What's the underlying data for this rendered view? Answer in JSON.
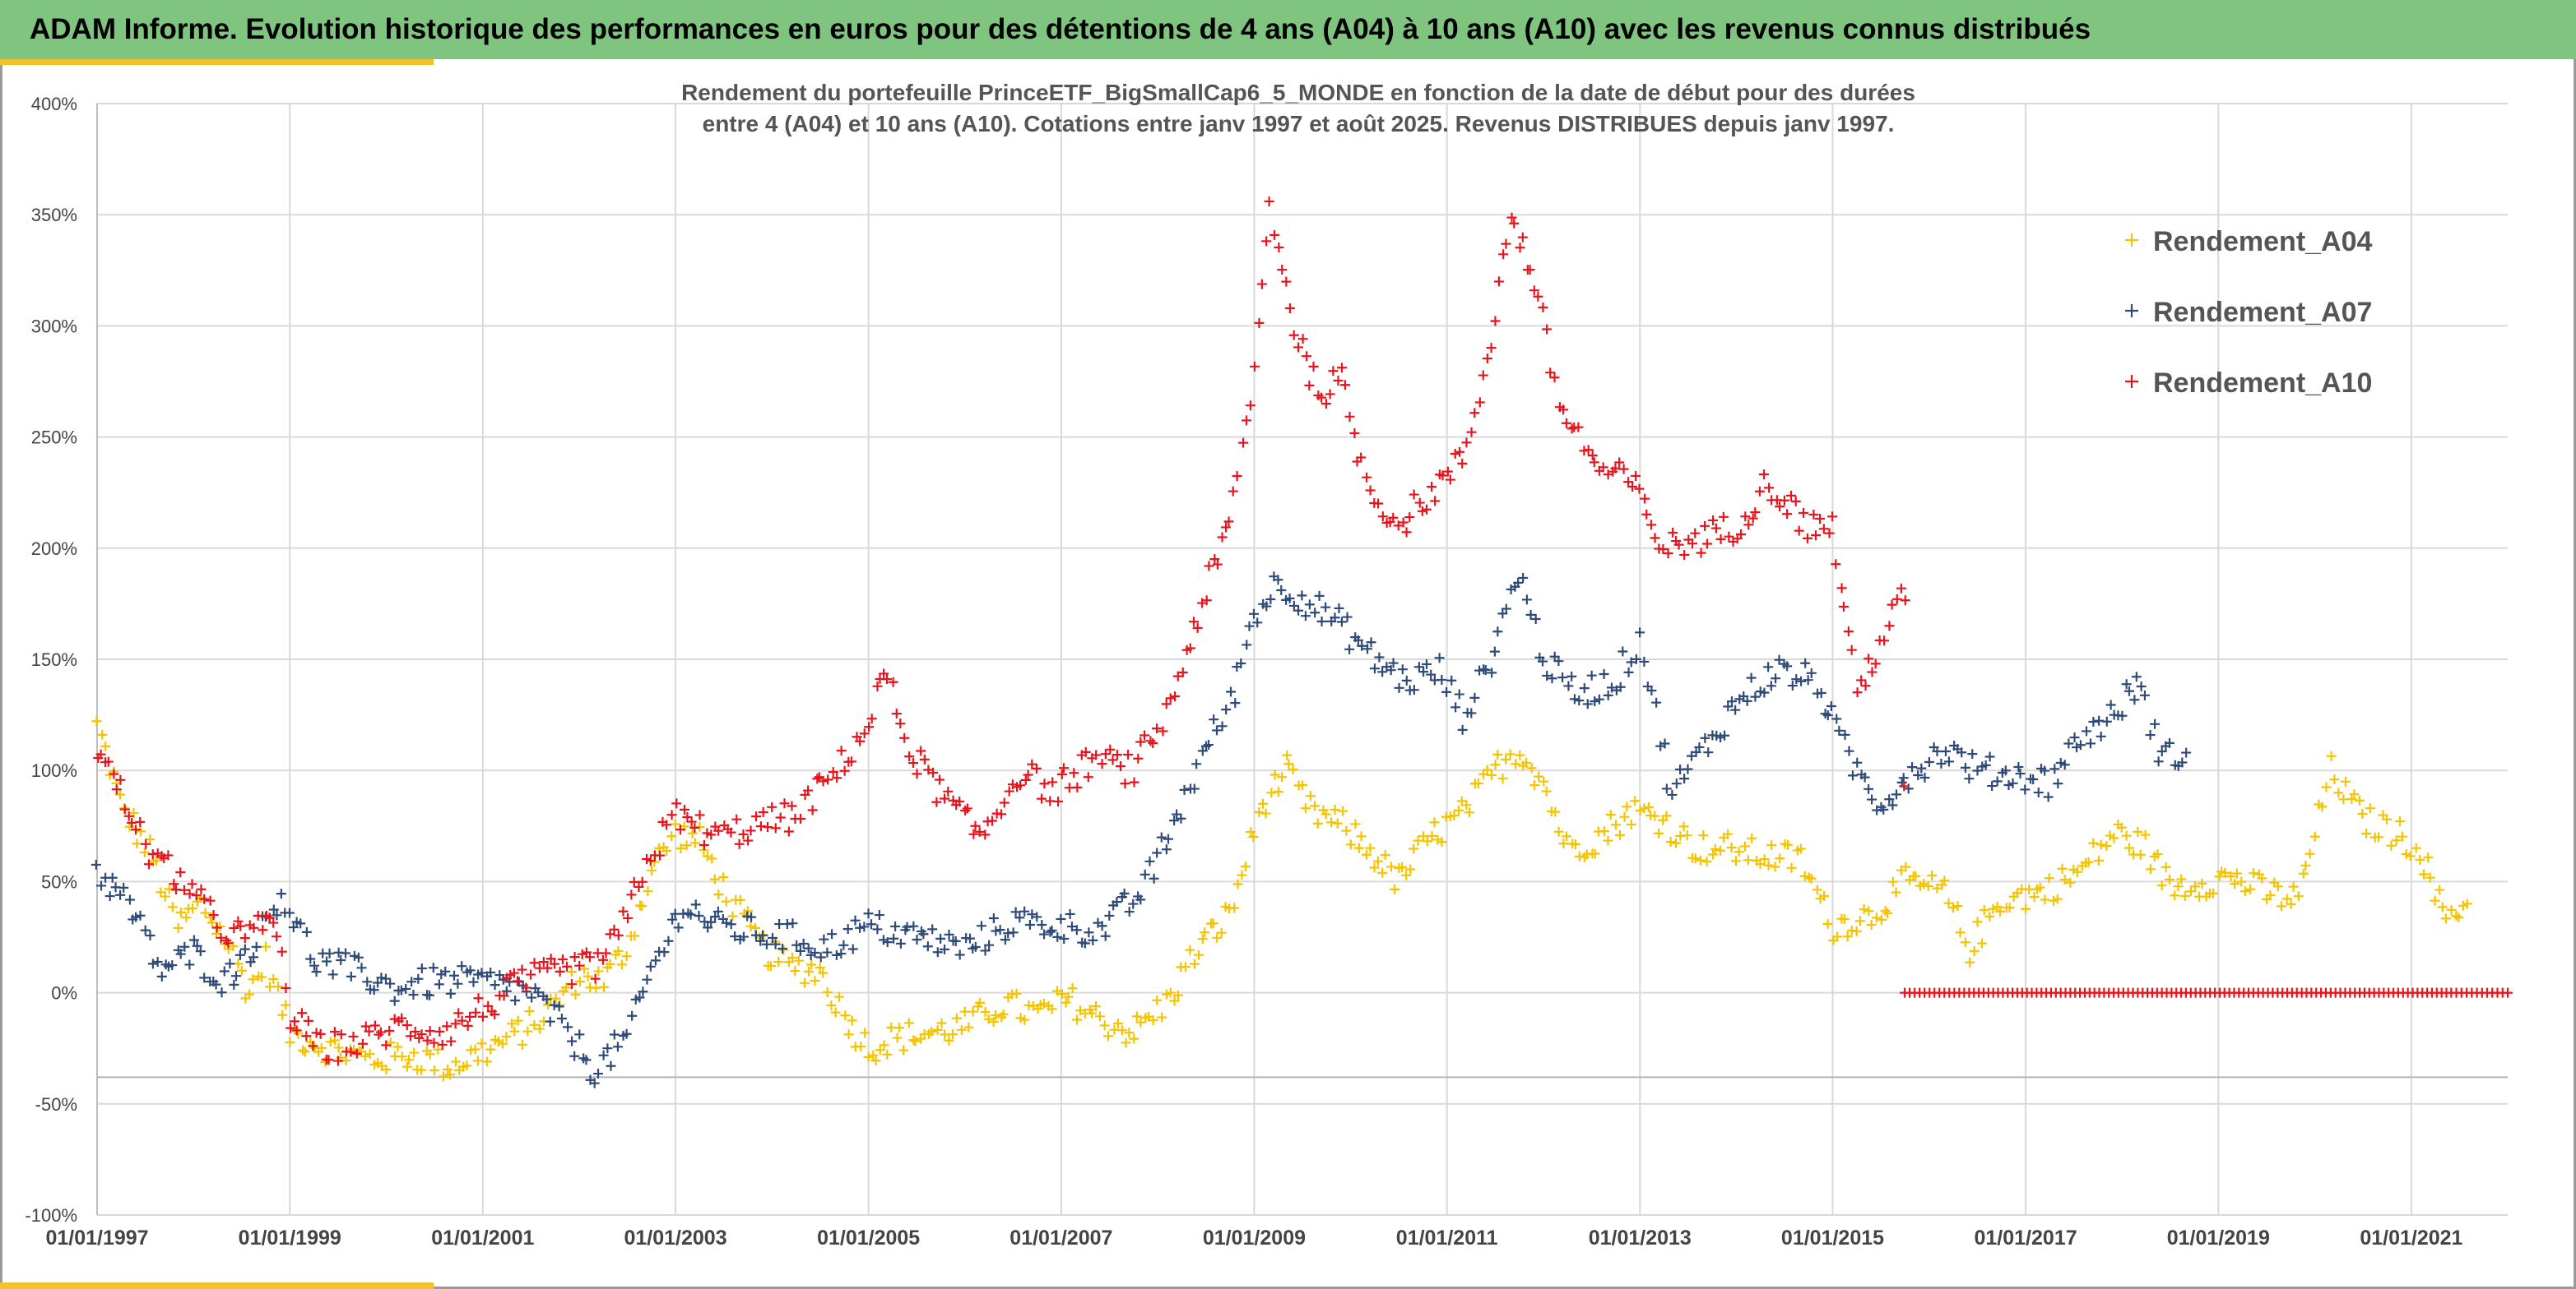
{
  "banner": {
    "title": "ADAM Informe. Evolution historique des performances en euros pour des détentions de 4 ans (A04) à 10 ans (A10) avec les revenus connus distribués"
  },
  "colors": {
    "banner_bg": "#7fc47f",
    "accent": "#f2c12e",
    "A04": "#f5c400",
    "A07": "#2e4a78",
    "A10": "#e8141c"
  },
  "chart_data": {
    "type": "scatter",
    "title_line1": "Rendement du portefeuille PrinceETF_BigSmallCap6_5_MONDE  en fonction de la date de début pour des durées",
    "title_line2": "entre 4 (A04) et 10 ans (A10). Cotations entre janv 1997 et août 2025. Revenus DISTRIBUES depuis janv 1997.",
    "xlabel": "",
    "ylabel": "",
    "x_range": [
      "1997-01-01",
      "2022-01-01"
    ],
    "ylim": [
      -100,
      400
    ],
    "y_ticks": [
      {
        "value": 400,
        "label": "400%"
      },
      {
        "value": 350,
        "label": "350%"
      },
      {
        "value": 300,
        "label": "300%"
      },
      {
        "value": 250,
        "label": "250%"
      },
      {
        "value": 200,
        "label": "200%"
      },
      {
        "value": 150,
        "label": "150%"
      },
      {
        "value": 100,
        "label": "100%"
      },
      {
        "value": 50,
        "label": "50%"
      },
      {
        "value": 0,
        "label": "0%"
      },
      {
        "value": -50,
        "label": "-50%"
      },
      {
        "value": -100,
        "label": "-100%"
      }
    ],
    "x_ticks": [
      "01/01/1997",
      "01/01/1999",
      "01/01/2001",
      "01/01/2003",
      "01/01/2005",
      "01/01/2007",
      "01/01/2009",
      "01/01/2011",
      "01/01/2013",
      "01/01/2015",
      "01/01/2017",
      "01/01/2019",
      "01/01/2021"
    ],
    "grid": true,
    "marker": "+",
    "legend_position": "top-right",
    "series": [
      {
        "name": "Rendement_A04",
        "color": "#f5c400",
        "points": [
          [
            "1997-01-01",
            120
          ],
          [
            "1997-04-01",
            85
          ],
          [
            "1997-08-01",
            60
          ],
          [
            "1997-11-01",
            30
          ],
          [
            "1998-02-01",
            40
          ],
          [
            "1998-05-01",
            25
          ],
          [
            "1998-08-01",
            0
          ],
          [
            "1998-10-01",
            15
          ],
          [
            "1999-01-01",
            -18
          ],
          [
            "1999-06-01",
            -25
          ],
          [
            "1999-11-01",
            -30
          ],
          [
            "2000-04-01",
            -28
          ],
          [
            "2000-09-01",
            -33
          ],
          [
            "2001-02-01",
            -25
          ],
          [
            "2001-07-01",
            -15
          ],
          [
            "2001-10-01",
            -5
          ],
          [
            "2002-01-01",
            8
          ],
          [
            "2002-04-01",
            5
          ],
          [
            "2002-07-01",
            20
          ],
          [
            "2002-10-01",
            55
          ],
          [
            "2003-01-01",
            72
          ],
          [
            "2003-04-01",
            68
          ],
          [
            "2003-08-01",
            40
          ],
          [
            "2003-12-01",
            20
          ],
          [
            "2004-03-01",
            12
          ],
          [
            "2004-07-01",
            10
          ],
          [
            "2004-10-01",
            -10
          ],
          [
            "2005-01-01",
            -25
          ],
          [
            "2005-05-01",
            -20
          ],
          [
            "2005-09-01",
            -18
          ],
          [
            "2006-01-01",
            -15
          ],
          [
            "2006-06-01",
            -5
          ],
          [
            "2006-10-01",
            -10
          ],
          [
            "2007-02-01",
            -3
          ],
          [
            "2007-06-01",
            -12
          ],
          [
            "2007-10-01",
            -18
          ],
          [
            "2008-02-01",
            -5
          ],
          [
            "2008-06-01",
            20
          ],
          [
            "2008-10-01",
            35
          ],
          [
            "2009-02-01",
            85
          ],
          [
            "2009-05-01",
            100
          ],
          [
            "2009-08-01",
            82
          ],
          [
            "2009-12-01",
            75
          ],
          [
            "2010-04-01",
            62
          ],
          [
            "2010-07-01",
            50
          ],
          [
            "2010-11-01",
            70
          ],
          [
            "2011-03-01",
            80
          ],
          [
            "2011-07-01",
            100
          ],
          [
            "2011-10-01",
            110
          ],
          [
            "2012-01-01",
            95
          ],
          [
            "2012-04-01",
            65
          ],
          [
            "2012-08-01",
            70
          ],
          [
            "2012-12-01",
            82
          ],
          [
            "2013-04-01",
            78
          ],
          [
            "2013-08-01",
            65
          ],
          [
            "2013-12-01",
            65
          ],
          [
            "2014-04-01",
            62
          ],
          [
            "2014-09-01",
            60
          ],
          [
            "2015-01-01",
            30
          ],
          [
            "2015-06-01",
            35
          ],
          [
            "2015-10-01",
            50
          ],
          [
            "2016-03-01",
            45
          ],
          [
            "2016-06-01",
            20
          ],
          [
            "2016-10-01",
            42
          ],
          [
            "2017-03-01",
            45
          ],
          [
            "2017-08-01",
            55
          ],
          [
            "2017-12-01",
            72
          ],
          [
            "2018-04-01",
            65
          ],
          [
            "2018-07-01",
            48
          ],
          [
            "2018-11-01",
            50
          ],
          [
            "2019-03-01",
            52
          ],
          [
            "2019-07-01",
            45
          ],
          [
            "2019-11-01",
            42
          ],
          [
            "2020-03-01",
            100
          ],
          [
            "2020-07-01",
            78
          ],
          [
            "2020-11-01",
            72
          ],
          [
            "2021-02-01",
            65
          ],
          [
            "2021-05-01",
            35
          ],
          [
            "2021-08-01",
            40
          ]
        ]
      },
      {
        "name": "Rendement_A07",
        "color": "#2e4a78",
        "points": [
          [
            "1997-01-01",
            55
          ],
          [
            "1997-05-01",
            40
          ],
          [
            "1997-09-01",
            10
          ],
          [
            "1998-01-01",
            18
          ],
          [
            "1998-05-01",
            5
          ],
          [
            "1998-09-01",
            25
          ],
          [
            "1998-12-01",
            45
          ],
          [
            "1999-04-01",
            15
          ],
          [
            "1999-09-01",
            10
          ],
          [
            "2000-02-01",
            2
          ],
          [
            "2000-07-01",
            5
          ],
          [
            "2001-01-01",
            5
          ],
          [
            "2001-07-01",
            0
          ],
          [
            "2001-11-01",
            -15
          ],
          [
            "2002-03-01",
            -35
          ],
          [
            "2002-07-01",
            -20
          ],
          [
            "2002-10-01",
            10
          ],
          [
            "2003-02-01",
            40
          ],
          [
            "2003-06-01",
            30
          ],
          [
            "2003-10-01",
            28
          ],
          [
            "2004-03-01",
            25
          ],
          [
            "2004-08-01",
            20
          ],
          [
            "2005-01-01",
            30
          ],
          [
            "2005-07-01",
            25
          ],
          [
            "2006-01-01",
            20
          ],
          [
            "2006-07-01",
            32
          ],
          [
            "2007-01-01",
            30
          ],
          [
            "2007-06-01",
            28
          ],
          [
            "2007-11-01",
            45
          ],
          [
            "2008-03-01",
            75
          ],
          [
            "2008-07-01",
            110
          ],
          [
            "2008-10-01",
            130
          ],
          [
            "2009-01-01",
            170
          ],
          [
            "2009-04-01",
            185
          ],
          [
            "2009-08-01",
            175
          ],
          [
            "2009-12-01",
            165
          ],
          [
            "2010-04-01",
            150
          ],
          [
            "2010-08-01",
            140
          ],
          [
            "2010-12-01",
            145
          ],
          [
            "2011-03-01",
            125
          ],
          [
            "2011-06-01",
            145
          ],
          [
            "2011-10-01",
            190
          ],
          [
            "2012-01-01",
            150
          ],
          [
            "2012-05-01",
            135
          ],
          [
            "2012-10-01",
            140
          ],
          [
            "2013-01-01",
            160
          ],
          [
            "2013-05-01",
            90
          ],
          [
            "2013-09-01",
            110
          ],
          [
            "2014-01-01",
            130
          ],
          [
            "2014-06-01",
            145
          ],
          [
            "2014-11-01",
            140
          ],
          [
            "2015-03-01",
            105
          ],
          [
            "2015-07-01",
            85
          ],
          [
            "2015-11-01",
            100
          ],
          [
            "2016-03-01",
            110
          ],
          [
            "2016-07-01",
            100
          ],
          [
            "2016-12-01",
            98
          ],
          [
            "2017-04-01",
            95
          ],
          [
            "2017-08-01",
            115
          ],
          [
            "2017-12-01",
            125
          ],
          [
            "2018-03-01",
            140
          ],
          [
            "2018-06-01",
            105
          ],
          [
            "2018-09-01",
            108
          ]
        ]
      },
      {
        "name": "Rendement_A10",
        "color": "#e8141c",
        "points": [
          [
            "1997-01-01",
            110
          ],
          [
            "1997-04-01",
            90
          ],
          [
            "1997-08-01",
            60
          ],
          [
            "1997-12-01",
            50
          ],
          [
            "1998-04-01",
            30
          ],
          [
            "1998-08-01",
            25
          ],
          [
            "1998-11-01",
            35
          ],
          [
            "1999-01-01",
            -10
          ],
          [
            "1999-05-01",
            -25
          ],
          [
            "1999-10-01",
            -22
          ],
          [
            "2000-03-01",
            -15
          ],
          [
            "2000-08-01",
            -18
          ],
          [
            "2001-02-01",
            -5
          ],
          [
            "2001-06-01",
            5
          ],
          [
            "2001-11-01",
            10
          ],
          [
            "2002-03-01",
            12
          ],
          [
            "2002-06-01",
            25
          ],
          [
            "2002-09-01",
            55
          ],
          [
            "2003-01-01",
            80
          ],
          [
            "2003-06-01",
            70
          ],
          [
            "2003-11-01",
            75
          ],
          [
            "2004-04-01",
            80
          ],
          [
            "2004-09-01",
            100
          ],
          [
            "2005-01-01",
            120
          ],
          [
            "2005-03-01",
            145
          ],
          [
            "2005-06-01",
            110
          ],
          [
            "2005-10-01",
            90
          ],
          [
            "2006-03-01",
            70
          ],
          [
            "2006-08-01",
            100
          ],
          [
            "2006-12-01",
            90
          ],
          [
            "2007-05-01",
            105
          ],
          [
            "2007-10-01",
            100
          ],
          [
            "2008-02-01",
            125
          ],
          [
            "2008-06-01",
            170
          ],
          [
            "2008-10-01",
            210
          ],
          [
            "2009-01-01",
            280
          ],
          [
            "2009-03-01",
            355
          ],
          [
            "2009-06-01",
            300
          ],
          [
            "2009-09-01",
            270
          ],
          [
            "2009-12-01",
            275
          ],
          [
            "2010-03-01",
            230
          ],
          [
            "2010-07-01",
            210
          ],
          [
            "2010-11-01",
            225
          ],
          [
            "2011-03-01",
            240
          ],
          [
            "2011-06-01",
            285
          ],
          [
            "2011-09-01",
            350
          ],
          [
            "2011-12-01",
            320
          ],
          [
            "2012-03-01",
            265
          ],
          [
            "2012-08-01",
            235
          ],
          [
            "2012-12-01",
            230
          ],
          [
            "2013-04-01",
            200
          ],
          [
            "2013-09-01",
            205
          ],
          [
            "2014-01-01",
            210
          ],
          [
            "2014-05-01",
            230
          ],
          [
            "2014-10-01",
            210
          ],
          [
            "2015-01-01",
            210
          ],
          [
            "2015-04-01",
            135
          ],
          [
            "2015-08-01",
            165
          ],
          [
            "2015-10-01",
            180
          ],
          [
            "2015-10-01",
            0
          ],
          [
            "2016-06-01",
            0
          ],
          [
            "2017-06-01",
            0
          ],
          [
            "2018-06-01",
            0
          ],
          [
            "2019-06-01",
            0
          ],
          [
            "2020-06-01",
            0
          ],
          [
            "2021-06-01",
            0
          ],
          [
            "2022-01-01",
            0
          ]
        ]
      }
    ],
    "zero_line_series": "Rendement_A10",
    "zero_line_range": [
      "2015-10-01",
      "2022-01-01"
    ]
  }
}
